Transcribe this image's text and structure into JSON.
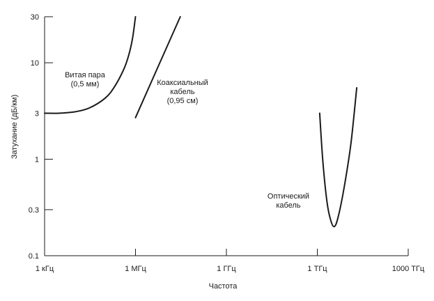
{
  "chart_data": {
    "type": "line",
    "title": "",
    "xlabel": "Частота",
    "ylabel": "Затухание (дБ/км)",
    "x_scale": "log",
    "y_scale": "log",
    "xlim_hz": [
      1000,
      1000000000000000
    ],
    "ylim": [
      0.1,
      30
    ],
    "x_ticks": [
      {
        "value": 1000,
        "label": "1 кГц"
      },
      {
        "value": 1000000,
        "label": "1 МГц"
      },
      {
        "value": 1000000000,
        "label": "1 ГГц"
      },
      {
        "value": 1000000000000,
        "label": "1 ТГц"
      },
      {
        "value": 1000000000000000,
        "label": "1000 ТГц"
      }
    ],
    "y_ticks": [
      {
        "value": 0.1,
        "label": "0.1"
      },
      {
        "value": 0.3,
        "label": "0.3"
      },
      {
        "value": 1,
        "label": "1"
      },
      {
        "value": 3,
        "label": "3"
      },
      {
        "value": 10,
        "label": "10"
      },
      {
        "value": 30,
        "label": "30"
      }
    ],
    "grid": false,
    "legend": "none",
    "line_color": "#1a1a1a",
    "series": [
      {
        "label_lines": [
          "Витая пара",
          "(0,5 мм)"
        ],
        "points": [
          [
            1000,
            3.0
          ],
          [
            3000,
            3.0
          ],
          [
            10000,
            3.1
          ],
          [
            30000,
            3.4
          ],
          [
            100000,
            4.3
          ],
          [
            200000,
            5.6
          ],
          [
            400000,
            8.4
          ],
          [
            600000,
            12.0
          ],
          [
            800000,
            18.0
          ],
          [
            1000000,
            30.0
          ]
        ]
      },
      {
        "label_lines": [
          "Коаксиальный",
          "кабель",
          "(0,95 см)"
        ],
        "points": [
          [
            1000000,
            2.7
          ],
          [
            30000000,
            30.0
          ]
        ]
      },
      {
        "label_lines": [
          "Оптический",
          "кабель"
        ],
        "points": [
          [
            1200000000000,
            3.0
          ],
          [
            1500000000000,
            1.0
          ],
          [
            2000000000000,
            0.4
          ],
          [
            2600000000000,
            0.25
          ],
          [
            3600000000000,
            0.2
          ],
          [
            5000000000000,
            0.26
          ],
          [
            8000000000000,
            0.55
          ],
          [
            13000000000000,
            1.5
          ],
          [
            20000000000000,
            5.5
          ]
        ]
      }
    ]
  }
}
